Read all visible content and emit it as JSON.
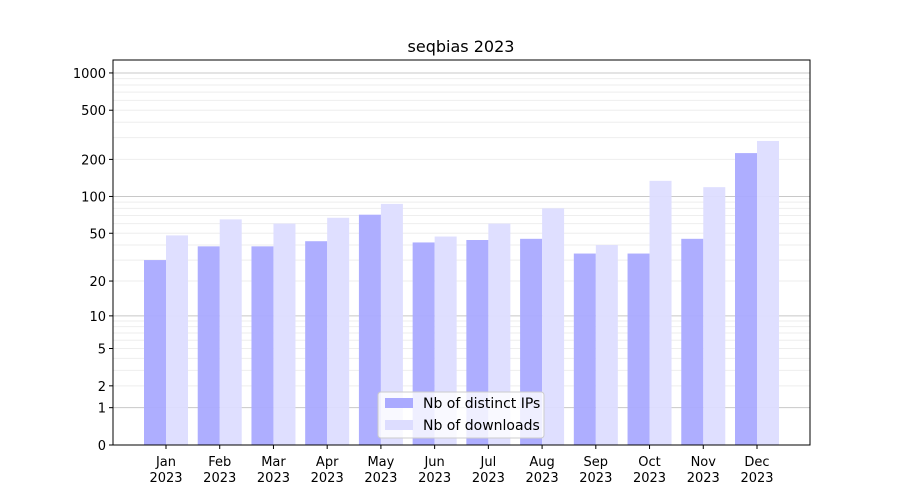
{
  "chart_data": {
    "type": "bar",
    "title": "seqbias 2023",
    "xlabel": "",
    "ylabel": "",
    "yscale": "log(1+y)",
    "ylim": [
      0,
      1200
    ],
    "yticks": [
      0,
      1,
      2,
      5,
      10,
      20,
      50,
      100,
      200,
      500,
      1000
    ],
    "ytick_labels": [
      "0",
      "1",
      "2",
      "5",
      "10",
      "20",
      "50",
      "100",
      "200",
      "500",
      "1000"
    ],
    "categories": [
      "Jan\n2023",
      "Feb\n2023",
      "Mar\n2023",
      "Apr\n2023",
      "May\n2023",
      "Jun\n2023",
      "Jul\n2023",
      "Aug\n2023",
      "Sep\n2023",
      "Oct\n2023",
      "Nov\n2023",
      "Dec\n2023"
    ],
    "series": [
      {
        "name": "Nb of distinct IPs",
        "color": "#aaaaff",
        "values": [
          30,
          39,
          39,
          43,
          71,
          42,
          44,
          45,
          34,
          34,
          45,
          225
        ]
      },
      {
        "name": "Nb of downloads",
        "color": "#ddddff",
        "values": [
          48,
          65,
          60,
          67,
          87,
          47,
          60,
          80,
          40,
          134,
          119,
          282
        ]
      }
    ],
    "grid": true,
    "legend": "bottom-center"
  }
}
